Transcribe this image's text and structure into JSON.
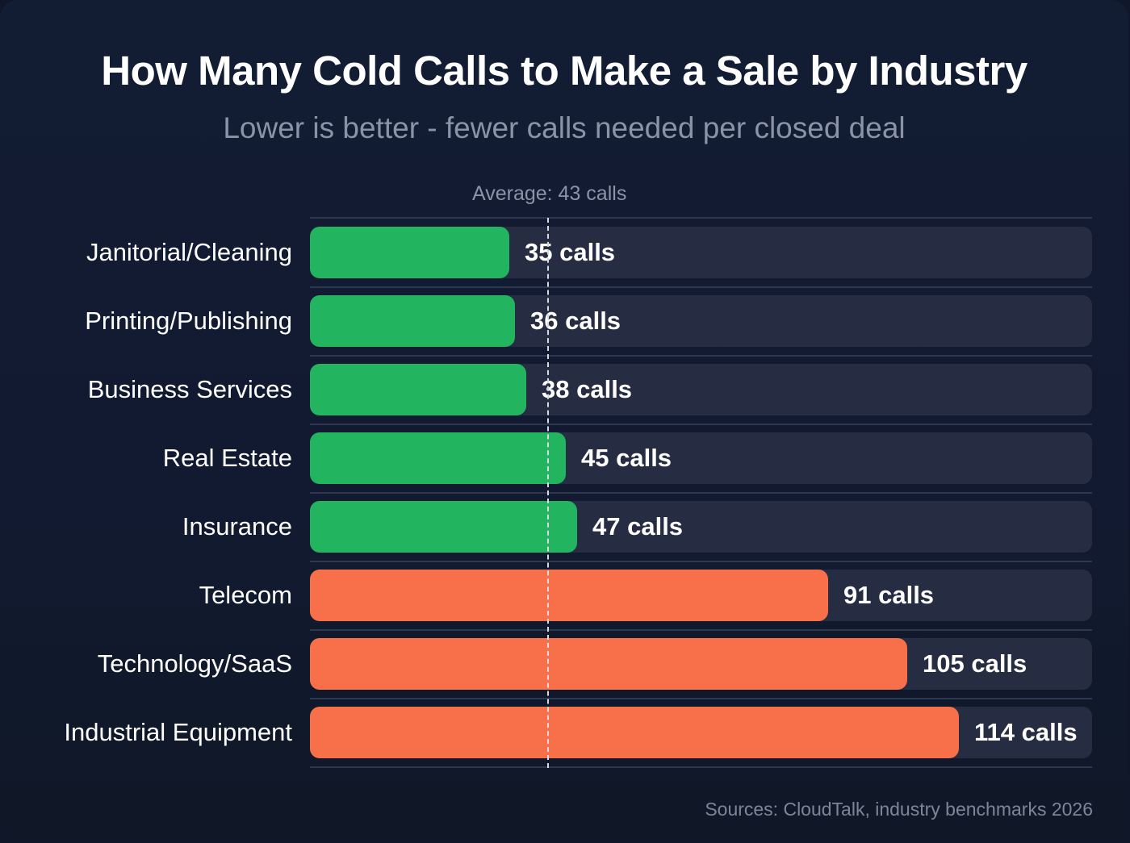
{
  "header": {
    "title": "How Many Cold Calls to Make a Sale by Industry",
    "subtitle": "Lower is better - fewer calls needed per closed deal"
  },
  "average": {
    "label": "Average: 43 calls",
    "value": 43
  },
  "rows": [
    {
      "label": "Janitorial/Cleaning",
      "value": 35,
      "value_label": "35 calls",
      "status": "good"
    },
    {
      "label": "Printing/Publishing",
      "value": 36,
      "value_label": "36 calls",
      "status": "good"
    },
    {
      "label": "Business Services",
      "value": 38,
      "value_label": "38 calls",
      "status": "good"
    },
    {
      "label": "Real Estate",
      "value": 45,
      "value_label": "45 calls",
      "status": "good"
    },
    {
      "label": "Insurance",
      "value": 47,
      "value_label": "47 calls",
      "status": "good"
    },
    {
      "label": "Telecom",
      "value": 91,
      "value_label": "91 calls",
      "status": "bad"
    },
    {
      "label": "Technology/SaaS",
      "value": 105,
      "value_label": "105 calls",
      "status": "bad"
    },
    {
      "label": "Industrial Equipment",
      "value": 114,
      "value_label": "114 calls",
      "status": "bad"
    }
  ],
  "colors": {
    "good": "#22b45e",
    "bad": "#f7704a",
    "background": "#111a30",
    "track": "#262d42"
  },
  "footer": {
    "source": "Sources: CloudTalk, industry benchmarks 2026"
  },
  "chart_data": {
    "type": "bar",
    "orientation": "horizontal",
    "title": "How Many Cold Calls to Make a Sale by Industry",
    "subtitle": "Lower is better - fewer calls needed per closed deal",
    "categories": [
      "Janitorial/Cleaning",
      "Printing/Publishing",
      "Business Services",
      "Real Estate",
      "Insurance",
      "Telecom",
      "Technology/SaaS",
      "Industrial Equipment"
    ],
    "values": [
      35,
      36,
      38,
      45,
      47,
      91,
      105,
      114
    ],
    "value_labels": [
      "35 calls",
      "36 calls",
      "38 calls",
      "45 calls",
      "47 calls",
      "91 calls",
      "105 calls",
      "114 calls"
    ],
    "bar_colors": [
      "#22b45e",
      "#22b45e",
      "#22b45e",
      "#22b45e",
      "#22b45e",
      "#f7704a",
      "#f7704a",
      "#f7704a"
    ],
    "reference_line": {
      "value": 43,
      "label": "Average: 43 calls",
      "style": "dashed"
    },
    "xlabel": "",
    "ylabel": "",
    "xlim": [
      0,
      138
    ],
    "grid": false,
    "legend": null,
    "source": "Sources: CloudTalk, industry benchmarks 2026"
  }
}
